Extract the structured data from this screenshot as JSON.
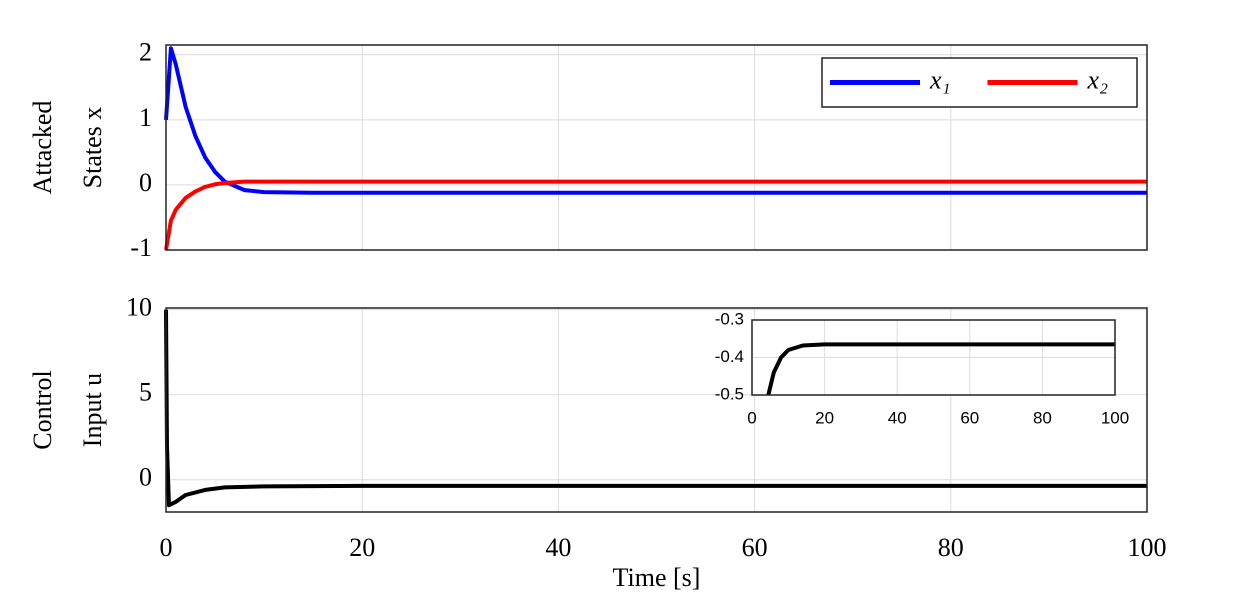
{
  "chart_data": [
    {
      "type": "line",
      "ylabel": [
        "Attacked",
        "States x"
      ],
      "x": [
        0,
        0.5,
        1,
        2,
        3,
        4,
        5,
        6,
        8,
        10,
        15,
        20,
        40,
        60,
        80,
        100
      ],
      "series": [
        {
          "name": "x₁",
          "color": "#0000ff",
          "values": [
            1,
            2.1,
            1.85,
            1.2,
            0.75,
            0.42,
            0.2,
            0.05,
            -0.08,
            -0.11,
            -0.12,
            -0.12,
            -0.12,
            -0.12,
            -0.12,
            -0.12
          ]
        },
        {
          "name": "x₂",
          "color": "#ff0000",
          "values": [
            -1,
            -0.55,
            -0.38,
            -0.2,
            -0.1,
            -0.03,
            0.01,
            0.03,
            0.05,
            0.05,
            0.05,
            0.05,
            0.05,
            0.05,
            0.05,
            0.05
          ]
        }
      ],
      "xlim": [
        0,
        100
      ],
      "xticks": [
        0,
        20,
        40,
        60,
        80,
        100
      ],
      "ylim": [
        -1,
        2.15
      ],
      "yticks": [
        -1,
        0,
        1,
        2
      ],
      "grid": true,
      "legend": "upper right"
    },
    {
      "type": "line",
      "ylabel": [
        "Control",
        "Input u"
      ],
      "xlabel": "Time [s]",
      "x": [
        0,
        0.1,
        0.3,
        1,
        2,
        4,
        6,
        10,
        20,
        40,
        60,
        80,
        100
      ],
      "series": [
        {
          "color": "#000000",
          "values": [
            10,
            2,
            -1.5,
            -1.3,
            -0.9,
            -0.6,
            -0.45,
            -0.39,
            -0.365,
            -0.365,
            -0.365,
            -0.365,
            -0.365
          ]
        }
      ],
      "xlim": [
        0,
        100
      ],
      "xticks": [
        0,
        20,
        40,
        60,
        80,
        100
      ],
      "ylim": [
        -1.9,
        10.1
      ],
      "yticks": [
        0,
        5,
        10
      ],
      "grid": true
    },
    {
      "type": "line",
      "x": [
        4.5,
        6,
        8,
        10,
        14,
        20,
        40,
        60,
        80,
        100
      ],
      "series": [
        {
          "color": "#000000",
          "values": [
            -0.5,
            -0.44,
            -0.4,
            -0.38,
            -0.368,
            -0.365,
            -0.365,
            -0.365,
            -0.365,
            -0.365
          ]
        }
      ],
      "xlim": [
        0,
        100
      ],
      "xticks": [
        0,
        20,
        40,
        60,
        80,
        100
      ],
      "ylim": [
        -0.5,
        -0.3
      ],
      "yticks": [
        -0.5,
        -0.4,
        -0.3
      ],
      "grid": true
    }
  ]
}
